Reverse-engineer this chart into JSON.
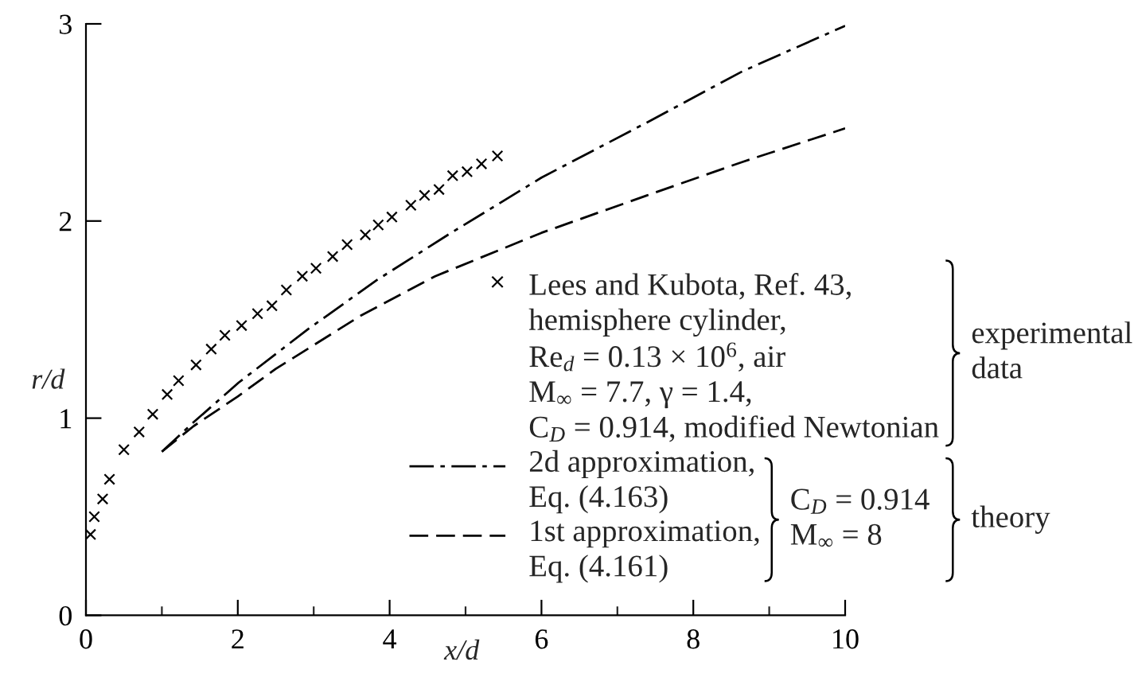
{
  "chart_data": {
    "type": "line",
    "xlabel": "x/d",
    "ylabel": "r/d",
    "xlim": [
      0,
      10
    ],
    "ylim": [
      0,
      3
    ],
    "xticks": [
      0,
      {
        "value": 1,
        "label": null
      },
      2,
      {
        "value": 3,
        "label": null
      },
      4,
      {
        "value": 5,
        "label": null
      },
      6,
      {
        "value": 7,
        "label": null
      },
      8,
      {
        "value": 9,
        "label": null
      },
      10
    ],
    "yticks": [
      0,
      1,
      2,
      3
    ],
    "legend": "bottom right",
    "series": [
      {
        "name": "Lees and Kubota, Ref. 43,\nhemisphere cylinder,\nRe$_{d}$ = 0.13 × 10$^{6}$, air\nM$_{∞}$ = 7.7, γ = 1.4,\nC$_{D}$ = 0.914, modified Newtonian",
        "type": "scatter",
        "marker": "cross",
        "color": "#000000",
        "x": [
          0.06,
          0.11,
          0.22,
          0.31,
          0.5,
          0.7,
          0.88,
          1.07,
          1.22,
          1.45,
          1.65,
          1.83,
          2.05,
          2.26,
          2.45,
          2.64,
          2.85,
          3.03,
          3.25,
          3.44,
          3.68,
          3.85,
          4.03,
          4.28,
          4.46,
          4.65,
          4.83,
          5.02,
          5.21,
          5.42
        ],
        "values": [
          0.41,
          0.5,
          0.59,
          0.69,
          0.84,
          0.93,
          1.02,
          1.12,
          1.19,
          1.27,
          1.35,
          1.42,
          1.47,
          1.53,
          1.57,
          1.65,
          1.72,
          1.76,
          1.82,
          1.88,
          1.93,
          1.98,
          2.02,
          2.08,
          2.13,
          2.16,
          2.23,
          2.25,
          2.29,
          2.33
        ]
      },
      {
        "name": "2d approximation,\nEq. (4.163)",
        "line_style": "dashdot",
        "color": "#000000",
        "x": [
          1.0,
          1.42,
          2.01,
          2.92,
          3.83,
          4.81,
          6.0,
          7.39,
          8.65,
          10.0
        ],
        "values": [
          0.83,
          0.98,
          1.18,
          1.45,
          1.7,
          1.94,
          2.22,
          2.5,
          2.76,
          2.99
        ]
      },
      {
        "name": "1st approximation,\nEq. (4.161)",
        "line_style": "dashed",
        "color": "#000000",
        "x": [
          1.0,
          1.42,
          2.0,
          2.5,
          3.62,
          4.6,
          6.0,
          7.39,
          8.65,
          10.0
        ],
        "values": [
          0.83,
          0.96,
          1.11,
          1.25,
          1.52,
          1.72,
          1.94,
          2.13,
          2.3,
          2.47
        ]
      }
    ],
    "annotations": [
      "experimental\ndata",
      "C$_{D}$ = 0.914\nM$_{∞}$ = 8",
      "theory"
    ]
  }
}
